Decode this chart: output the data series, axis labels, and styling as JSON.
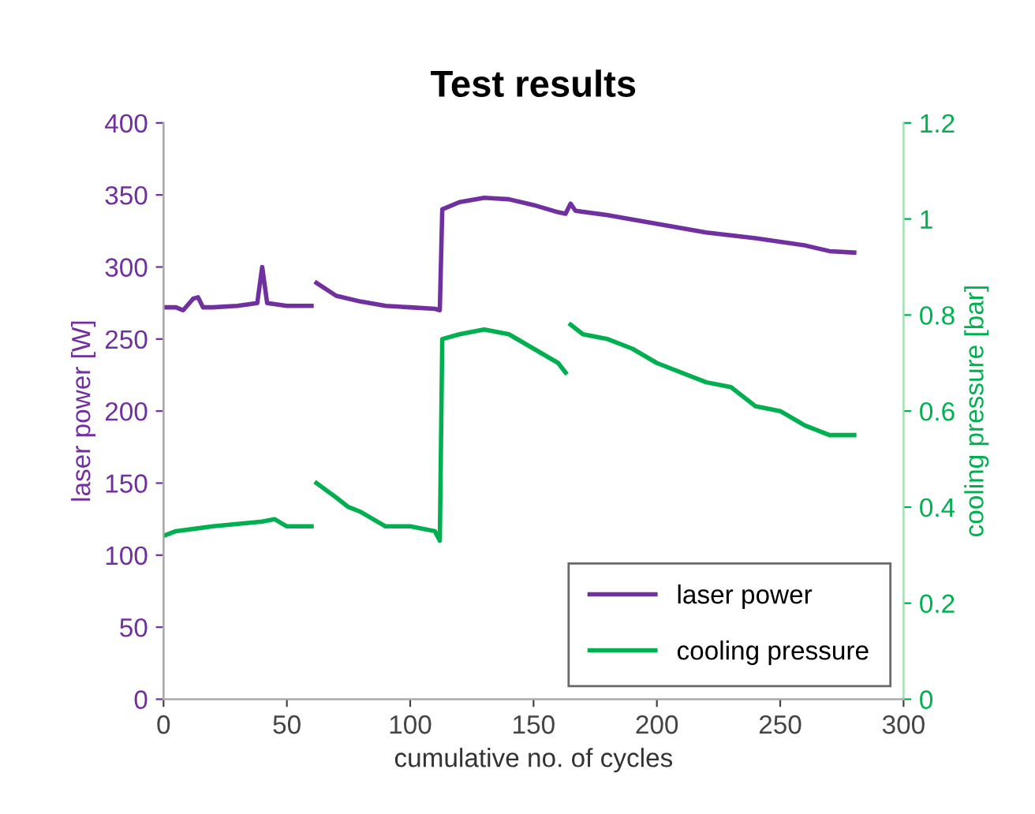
{
  "chart_data": {
    "type": "line",
    "title": "Test results",
    "xlabel": "cumulative no. of cycles",
    "ylabel": "laser power [W]",
    "y2label": "cooling pressure [bar]",
    "xlim": [
      0,
      300
    ],
    "xticks": [
      0,
      50,
      100,
      150,
      200,
      250,
      300
    ],
    "ylim": [
      0,
      400
    ],
    "yticks": [
      0,
      50,
      100,
      150,
      200,
      250,
      300,
      350,
      400
    ],
    "y2lim": [
      0,
      1.2
    ],
    "y2ticks": [
      0,
      0.2,
      0.4,
      0.6,
      0.8,
      1,
      1.2
    ],
    "grid": false,
    "legend": "bottom right",
    "marker": "none",
    "line_style": "solid",
    "series": [
      {
        "name": "laser power",
        "color": "#7030a0",
        "axis": "y",
        "x": [
          0,
          5,
          8,
          12,
          14,
          16,
          20,
          30,
          38,
          40,
          42,
          50,
          55,
          60,
          61,
          62,
          70,
          80,
          90,
          100,
          110,
          112,
          113,
          120,
          130,
          140,
          150,
          160,
          163,
          165,
          167,
          180,
          200,
          220,
          240,
          260,
          270,
          280
        ],
        "values": [
          272,
          272,
          270,
          278,
          279,
          272,
          272,
          273,
          275,
          300,
          275,
          273,
          273,
          273,
          null,
          289,
          280,
          276,
          273,
          272,
          271,
          270,
          340,
          345,
          348,
          347,
          343,
          338,
          337,
          344,
          339,
          336,
          330,
          324,
          320,
          315,
          311,
          310
        ]
      },
      {
        "name": "cooling pressure",
        "color": "#00b050",
        "axis": "y2",
        "x": [
          0,
          5,
          20,
          40,
          45,
          50,
          60,
          61,
          62,
          70,
          75,
          80,
          90,
          100,
          110,
          112,
          113,
          120,
          130,
          140,
          150,
          160,
          163,
          164,
          165,
          170,
          180,
          190,
          200,
          220,
          230,
          240,
          250,
          260,
          270,
          280
        ],
        "values": [
          0.34,
          0.35,
          0.36,
          0.37,
          0.375,
          0.36,
          0.36,
          null,
          0.45,
          0.42,
          0.4,
          0.39,
          0.36,
          0.36,
          0.35,
          0.33,
          0.75,
          0.76,
          0.77,
          0.76,
          0.73,
          0.7,
          0.68,
          null,
          0.78,
          0.76,
          0.75,
          0.73,
          0.7,
          0.66,
          0.65,
          0.61,
          0.6,
          0.57,
          0.55,
          0.55
        ]
      }
    ]
  }
}
